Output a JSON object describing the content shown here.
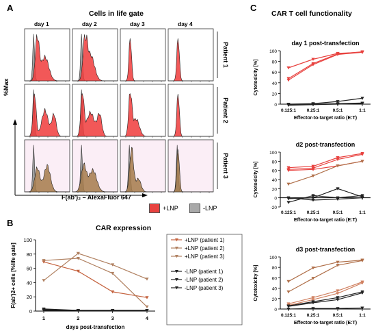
{
  "panels": {
    "A": {
      "letter": "A",
      "title": "Cells in life gate",
      "day_labels": [
        "day 1",
        "day 2",
        "day 3",
        "day 4"
      ],
      "patient_labels": [
        "Patient 1",
        "Patient 2",
        "Patient 3"
      ],
      "y_axis_label": "%Max",
      "x_axis_label": "F(ab')₂ – AlexaFluor 647",
      "legend": [
        {
          "label": "+LNP",
          "color": "#e8423f"
        },
        {
          "label": "-LNP",
          "color": "#a9a9a9"
        }
      ]
    },
    "B": {
      "letter": "B",
      "title": "CAR expression"
    },
    "C": {
      "letter": "C",
      "title": "CAR T cell functionality"
    }
  },
  "colors": {
    "lnp_red": "#e8423f",
    "lnp_tan": "#b0704a",
    "neg_black": "#222222",
    "histogram_red": "#f03b3b",
    "histogram_grey": "#9e9e9e",
    "histogram_tan": "#a57a4a"
  },
  "chart_data": [
    {
      "id": "car-expression",
      "type": "line",
      "xlabel": "days post-transfection",
      "ylabel": "F(ab')2+ cells [%life gate]",
      "categories": [
        1,
        2,
        3,
        4
      ],
      "ylim": [
        0,
        100
      ],
      "yticks": [
        0,
        20,
        40,
        60,
        80,
        100
      ],
      "series": [
        {
          "name": "+LNP (patient 1)",
          "color": "#c4623e",
          "marker": "tri-down",
          "values": [
            69,
            56,
            27,
            19
          ]
        },
        {
          "name": "+LNP (patient 2)",
          "color": "#b08060",
          "marker": "tri-down",
          "values": [
            43,
            81,
            65,
            45
          ]
        },
        {
          "name": "+LNP (patient 3)",
          "color": "#b08060",
          "marker": "tri-down",
          "values": [
            71,
            74,
            53,
            6
          ]
        },
        {
          "name": "-LNP (patient 1)",
          "color": "#222222",
          "marker": "tri-down",
          "values": [
            2,
            1,
            1,
            1
          ]
        },
        {
          "name": "-LNP (patient 2)",
          "color": "#222222",
          "marker": "tri-down",
          "values": [
            1,
            1,
            1,
            1
          ]
        },
        {
          "name": "-LNP (patient 3)",
          "color": "#222222",
          "marker": "tri-down",
          "values": [
            3,
            1,
            1,
            1
          ]
        }
      ]
    },
    {
      "id": "cytotox-day1",
      "type": "line",
      "title": "day 1 post-transfection",
      "xlabel": "Effector-to-target ratio (E:T)",
      "ylabel": "Cytotoxicity [%]",
      "categories": [
        "0.125:1",
        "0.25:1",
        "0.5:1",
        "1:1"
      ],
      "ylim": [
        0,
        100
      ],
      "yticks": [
        0,
        20,
        40,
        60,
        80,
        100
      ],
      "series": [
        {
          "color": "#e8423f",
          "values": [
            68,
            84,
            95,
            97
          ]
        },
        {
          "color": "#e8423f",
          "values": [
            48,
            76,
            94,
            98
          ]
        },
        {
          "color": "#e8423f",
          "values": [
            45,
            74,
            93,
            97
          ]
        },
        {
          "color": "#222222",
          "values": [
            0,
            1,
            5,
            11
          ]
        },
        {
          "color": "#222222",
          "values": [
            -1,
            0,
            1,
            2
          ]
        },
        {
          "color": "#222222",
          "values": [
            -2,
            -1,
            0,
            1
          ]
        }
      ]
    },
    {
      "id": "cytotox-day2",
      "type": "line",
      "title": "d2 post-transfection",
      "xlabel": "Effector-to-target ratio (E:T)",
      "ylabel": "Cytotoxicity [%]",
      "categories": [
        "0.125:1",
        "0.25:1",
        "0.5:1",
        "1:1"
      ],
      "ylim": [
        -20,
        100
      ],
      "yticks": [
        -20,
        0,
        20,
        40,
        60,
        80,
        100
      ],
      "series": [
        {
          "color": "#e8423f",
          "values": [
            66,
            69,
            88,
            97
          ]
        },
        {
          "color": "#e8423f",
          "values": [
            62,
            65,
            84,
            95
          ]
        },
        {
          "color": "#e8423f",
          "values": [
            60,
            62,
            70,
            80
          ]
        },
        {
          "color": "#b0704a",
          "values": [
            30,
            48,
            70,
            80
          ]
        },
        {
          "color": "#222222",
          "values": [
            -10,
            5,
            0,
            5
          ]
        },
        {
          "color": "#222222",
          "values": [
            -2,
            0,
            20,
            2
          ]
        },
        {
          "color": "#222222",
          "values": [
            0,
            -5,
            -3,
            0
          ]
        }
      ]
    },
    {
      "id": "cytotox-day3",
      "type": "line",
      "title": "d3 post-transfection",
      "xlabel": "Effector-to-target ratio (E:T)",
      "ylabel": "Cytotoxicity [%]",
      "categories": [
        "0.125:1",
        "0.25:1",
        "0.5:1",
        "1:1"
      ],
      "ylim": [
        0,
        100
      ],
      "yticks": [
        0,
        20,
        40,
        60,
        80,
        100
      ],
      "series": [
        {
          "color": "#b0704a",
          "values": [
            53,
            79,
            90,
            94
          ]
        },
        {
          "color": "#b0704a",
          "values": [
            33,
            59,
            84,
            93
          ]
        },
        {
          "color": "#d08060",
          "values": [
            10,
            22,
            35,
            52
          ]
        },
        {
          "color": "#d08060",
          "values": [
            7,
            18,
            30,
            50
          ]
        },
        {
          "color": "#222222",
          "values": [
            6,
            14,
            22,
            33
          ]
        },
        {
          "color": "#222222",
          "values": [
            5,
            12,
            18,
            31
          ]
        },
        {
          "color": "#222222",
          "values": [
            0,
            1,
            1,
            2
          ]
        }
      ]
    }
  ]
}
